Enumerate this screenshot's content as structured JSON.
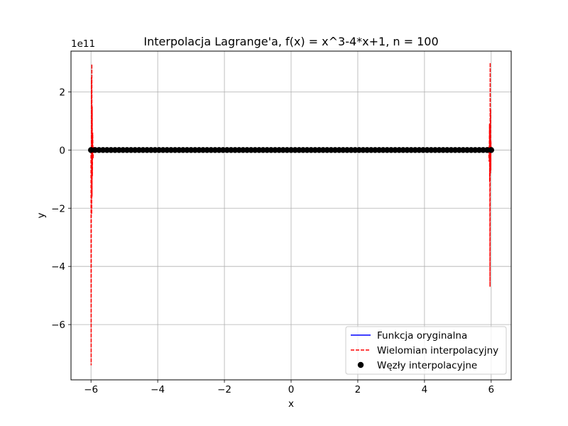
{
  "chart_data": {
    "type": "line",
    "title": "Interpolacja Lagrange'a, f(x) = x^3-4*x+1, n = 100",
    "xlabel": "x",
    "ylabel": "y",
    "offset_label": "1e11",
    "xlim": [
      -6.6,
      6.6
    ],
    "ylim": [
      -7.9,
      3.4
    ],
    "x_ticks": [
      -6,
      -4,
      -2,
      0,
      2,
      4,
      6
    ],
    "x_tick_labels": [
      "−6",
      "−4",
      "−2",
      "0",
      "2",
      "4",
      "6"
    ],
    "y_ticks": [
      -6,
      -4,
      -2,
      0,
      2
    ],
    "y_tick_labels": [
      "−6",
      "−4",
      "−2",
      "0",
      "2"
    ],
    "grid": true,
    "legend_position": "lower-right",
    "node_count": 101,
    "series": [
      {
        "name": "Funkcja oryginalna",
        "style": "solid",
        "color": "#0000ff",
        "x": [
          -6,
          6
        ],
        "y": [
          0,
          0
        ]
      },
      {
        "name": "Wielomian interpolacyjny",
        "style": "dashed",
        "color": "#ff0000",
        "x": [
          -6.0,
          -5.995,
          -5.99,
          -5.985,
          -5.98,
          -5.975,
          -5.97,
          -5.965,
          -5.96,
          -5.95,
          -5.94,
          -5.92,
          -5.9,
          -5.8,
          0,
          5.8,
          5.9,
          5.92,
          5.94,
          5.95,
          5.955,
          5.96,
          5.965,
          5.97,
          5.975,
          5.98,
          5.985,
          5.99,
          6.0
        ],
        "y": [
          0,
          -7.4,
          -1.0,
          2.5,
          -2.2,
          2.95,
          -1.6,
          1.5,
          -0.9,
          0.6,
          -0.3,
          0.1,
          0,
          0,
          0,
          0,
          0,
          0.1,
          -0.4,
          0.9,
          -1.1,
          0.6,
          -4.7,
          3.0,
          -0.8,
          1.4,
          -0.7,
          0.3,
          0
        ],
        "note_units": "y values in units of 1e11"
      },
      {
        "name": "Węzły interpolacyjne",
        "style": "markers",
        "color": "#000000",
        "x_start": -6,
        "x_end": 6,
        "y": 0
      }
    ]
  }
}
